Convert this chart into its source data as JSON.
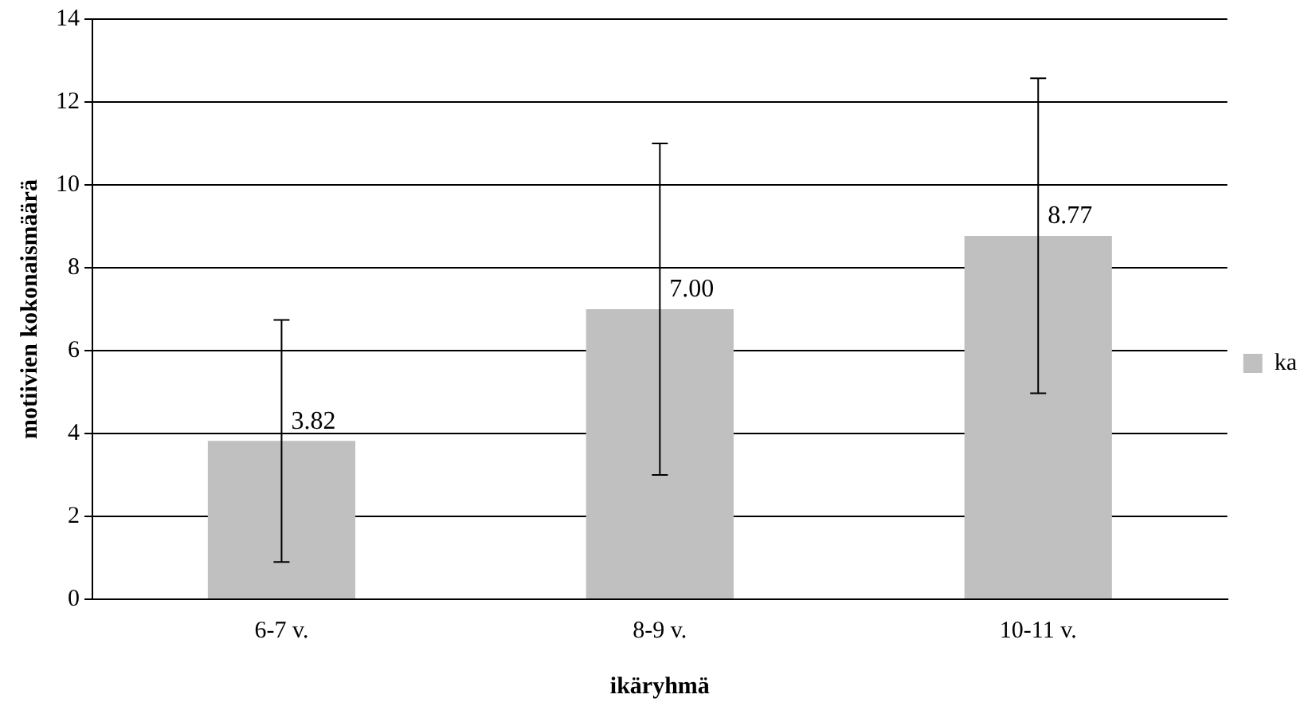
{
  "chart_data": {
    "type": "bar",
    "xlabel": "ikäryhmä",
    "ylabel": "motiivien kokonaismäärä",
    "categories": [
      "6-7 v.",
      "8-9 v.",
      "10-11 v."
    ],
    "series": [
      {
        "name": "ka",
        "color": "#c0c0c0",
        "values": [
          3.82,
          7.0,
          8.77
        ],
        "errors": [
          2.92,
          4.0,
          3.8
        ],
        "value_labels": [
          "3.82",
          "7.00",
          "8.77"
        ]
      }
    ],
    "ylim": [
      0,
      14
    ],
    "yticks": [
      0,
      2,
      4,
      6,
      8,
      10,
      12,
      14
    ],
    "grid": "y",
    "legend": "right"
  }
}
